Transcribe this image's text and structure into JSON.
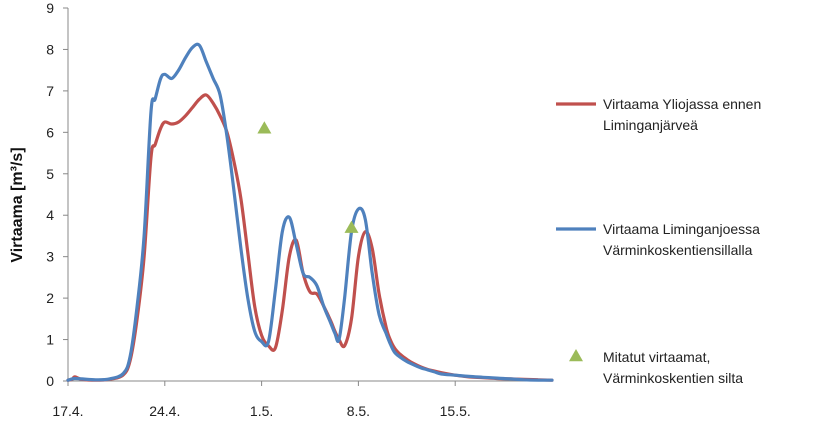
{
  "chart_data": {
    "type": "line",
    "title": "",
    "xlabel": "",
    "ylabel": "Virtaama [m³/s]",
    "ylim": [
      0,
      9
    ],
    "yticks": [
      "0",
      "1",
      "2",
      "3",
      "4",
      "5",
      "6",
      "7",
      "8",
      "9"
    ],
    "xlim": [
      0,
      35
    ],
    "xticks": [
      {
        "label": "17.4.",
        "x": 0
      },
      {
        "label": "24.4.",
        "x": 7
      },
      {
        "label": "1.5.",
        "x": 14
      },
      {
        "label": "8.5.",
        "x": 21
      },
      {
        "label": "15.5.",
        "x": 28
      }
    ],
    "series": [
      {
        "name": "Virtaama Yliojassa ennen Liminganjärveä",
        "name_lines": [
          "Virtaama Yliojassa ennen",
          "Liminganjärveä"
        ],
        "color": "#c0504d",
        "kind": "line",
        "x": [
          0,
          0.3,
          0.5,
          1,
          2,
          3,
          4,
          4.5,
          5,
          5.5,
          6,
          6.3,
          6.7,
          7,
          7.5,
          8,
          8.5,
          9,
          9.5,
          10,
          10.5,
          11,
          11.5,
          12,
          12.5,
          13,
          13.5,
          14,
          14.5,
          15,
          15.5,
          16,
          16.5,
          17,
          17.5,
          18,
          18.5,
          19,
          19.3,
          19.6,
          20,
          20.5,
          21,
          21.5,
          22,
          22.5,
          23,
          23.3,
          23.6,
          24,
          24.5,
          25,
          25.5,
          26,
          26.5,
          27,
          28,
          29,
          30,
          31,
          32,
          33,
          34,
          35
        ],
        "y": [
          0.02,
          0.04,
          0.1,
          0.04,
          0.02,
          0.04,
          0.15,
          0.5,
          1.5,
          3.0,
          5.4,
          5.7,
          6.1,
          6.25,
          6.2,
          6.25,
          6.4,
          6.6,
          6.8,
          6.9,
          6.7,
          6.4,
          6.0,
          5.3,
          4.4,
          3.1,
          1.8,
          1.1,
          0.85,
          0.8,
          1.7,
          3.0,
          3.4,
          2.6,
          2.15,
          2.1,
          1.8,
          1.45,
          1.2,
          1.0,
          0.85,
          1.5,
          3.0,
          3.6,
          3.2,
          2.1,
          1.3,
          1.0,
          0.8,
          0.65,
          0.52,
          0.42,
          0.34,
          0.28,
          0.24,
          0.2,
          0.14,
          0.1,
          0.08,
          0.06,
          0.05,
          0.04,
          0.03,
          0.02
        ]
      },
      {
        "name": "Virtaama Liminganjoessa Värminkoskentiensillalla",
        "name_lines": [
          "Virtaama Liminganjoessa",
          "Värminkoskentiensillalla"
        ],
        "color": "#4f81bd",
        "kind": "line",
        "x": [
          0,
          0.3,
          0.5,
          1,
          2,
          3,
          4,
          4.5,
          5,
          5.5,
          6,
          6.3,
          6.7,
          7,
          7.5,
          8,
          8.5,
          9,
          9.5,
          10,
          10.5,
          11,
          11.5,
          12,
          12.5,
          13,
          13.5,
          14,
          14.5,
          15,
          15.5,
          16,
          16.5,
          17,
          17.5,
          18,
          18.5,
          19,
          19.3,
          19.6,
          20,
          20.5,
          21,
          21.5,
          22,
          22.5,
          23,
          23.3,
          23.6,
          24,
          24.5,
          25,
          25.5,
          26,
          26.5,
          27,
          28,
          29,
          30,
          31,
          32,
          33,
          34,
          35
        ],
        "y": [
          0.02,
          0.05,
          0.06,
          0.05,
          0.03,
          0.05,
          0.18,
          0.6,
          1.8,
          3.5,
          6.5,
          6.8,
          7.3,
          7.4,
          7.3,
          7.5,
          7.8,
          8.05,
          8.1,
          7.7,
          7.3,
          6.9,
          5.9,
          4.6,
          3.2,
          2.0,
          1.2,
          0.95,
          0.95,
          2.2,
          3.6,
          3.95,
          3.3,
          2.6,
          2.5,
          2.3,
          1.8,
          1.4,
          1.15,
          1.0,
          2.0,
          3.6,
          4.15,
          3.9,
          2.6,
          1.6,
          1.15,
          0.9,
          0.7,
          0.58,
          0.47,
          0.39,
          0.32,
          0.27,
          0.22,
          0.17,
          0.14,
          0.11,
          0.09,
          0.07,
          0.05,
          0.03,
          0.02,
          0.02
        ]
      },
      {
        "name": "Mitatut virtaamat, Värminkoskentien silta",
        "name_lines": [
          "Mitatut virtaamat,",
          "Värminkoskentien silta"
        ],
        "color": "#9bbb59",
        "kind": "scatter",
        "marker": "triangle",
        "x": [
          14.2,
          20.5
        ],
        "y": [
          6.1,
          3.7
        ]
      }
    ],
    "legend_position": "right"
  }
}
